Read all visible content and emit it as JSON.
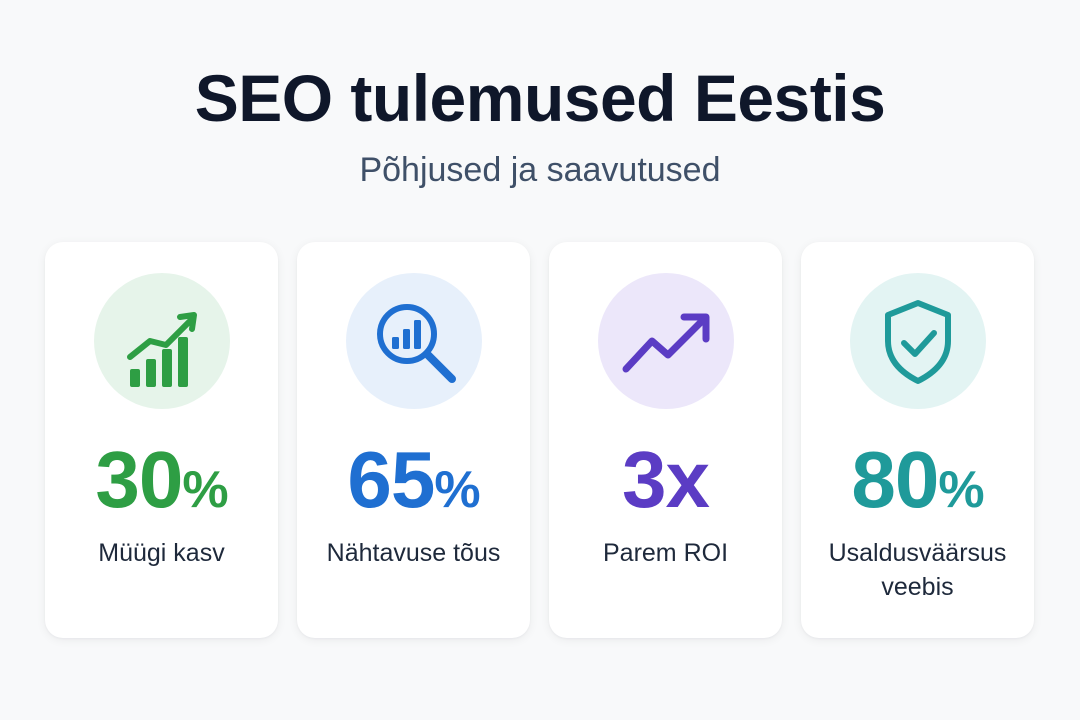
{
  "header": {
    "title": "SEO tulemused Eestis",
    "subtitle": "Põhjused ja saavutused"
  },
  "cards": [
    {
      "icon": "growth-chart-icon",
      "value": "30",
      "unit": "%",
      "label": "Müügi kasv",
      "color": "#2e9e44",
      "bg": "#e6f4ea"
    },
    {
      "icon": "magnifier-chart-icon",
      "value": "65",
      "unit": "%",
      "label": "Nähtavuse tõus",
      "color": "#1f6fd1",
      "bg": "#e7f0fb"
    },
    {
      "icon": "trend-arrow-icon",
      "value": "3x",
      "unit": "",
      "label": "Parem ROI",
      "color": "#5b3cc4",
      "bg": "#ece7fa"
    },
    {
      "icon": "shield-check-icon",
      "value": "80",
      "unit": "%",
      "label": "Usaldusväärsus veebis",
      "color": "#1f9a9a",
      "bg": "#e3f4f3"
    }
  ]
}
